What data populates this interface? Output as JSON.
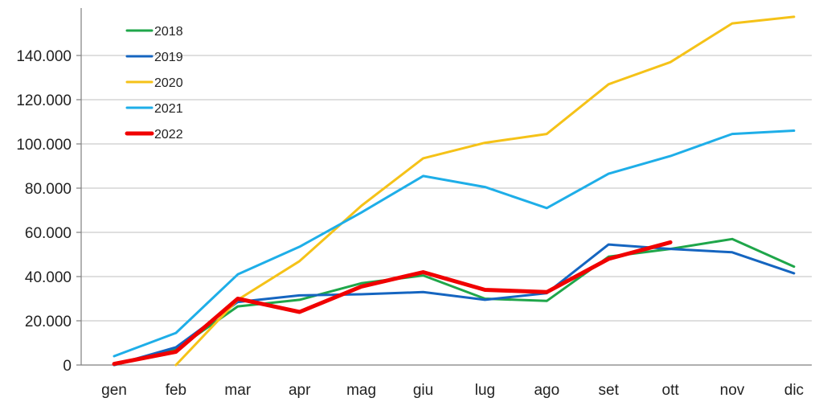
{
  "chart_data": {
    "type": "line",
    "title": "",
    "xlabel": "",
    "ylabel": "",
    "categories": [
      "gen",
      "feb",
      "mar",
      "apr",
      "mag",
      "giu",
      "lug",
      "ago",
      "set",
      "ott",
      "nov",
      "dic"
    ],
    "ylim": [
      0,
      160000
    ],
    "yticks": [
      0,
      20000,
      40000,
      60000,
      80000,
      100000,
      120000,
      140000
    ],
    "ytick_labels": [
      "0",
      "20.000",
      "40.000",
      "60.000",
      "80.000",
      "100.000",
      "120.000",
      "140.000"
    ],
    "grid": true,
    "legend_position": "top-left",
    "series": [
      {
        "name": "2018",
        "color": "#1fa64a",
        "values": [
          0,
          7000,
          26500,
          29500,
          37000,
          40500,
          30000,
          29000,
          49000,
          52500,
          57000,
          44500
        ]
      },
      {
        "name": "2019",
        "color": "#1565c0",
        "values": [
          0,
          8000,
          28500,
          31500,
          32000,
          33000,
          29500,
          32500,
          54500,
          52500,
          51000,
          41500
        ]
      },
      {
        "name": "2020",
        "color": "#f5c218",
        "values": [
          null,
          0,
          29500,
          47000,
          72000,
          93500,
          100500,
          104500,
          127000,
          137000,
          154500,
          157500
        ]
      },
      {
        "name": "2021",
        "color": "#1eaee8",
        "values": [
          4000,
          14500,
          41000,
          53500,
          69000,
          85500,
          80500,
          71000,
          86500,
          94500,
          104500,
          106000
        ]
      },
      {
        "name": "2022",
        "color": "#f00000",
        "values": [
          500,
          6000,
          30000,
          24000,
          35500,
          42000,
          34000,
          33000,
          48000,
          55500,
          null,
          null
        ]
      }
    ]
  }
}
